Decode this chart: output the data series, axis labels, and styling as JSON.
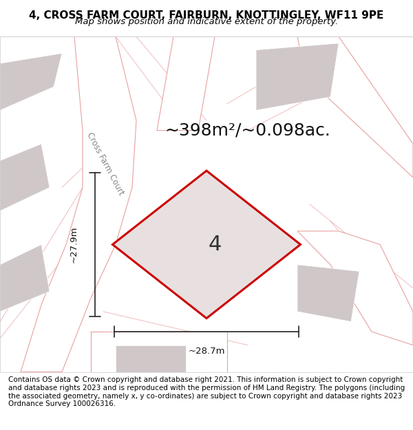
{
  "title_line1": "4, CROSS FARM COURT, FAIRBURN, KNOTTINGLEY, WF11 9PE",
  "title_line2": "Map shows position and indicative extent of the property.",
  "area_label": "~398m²/~0.098ac.",
  "plot_number": "4",
  "dim_width": "~28.7m",
  "dim_height": "~27.9m",
  "road_label": "Cross Farm Court",
  "footer_text": "Contains OS data © Crown copyright and database right 2021. This information is subject to Crown copyright and database rights 2023 and is reproduced with the permission of HM Land Registry. The polygons (including the associated geometry, namely x, y co-ordinates) are subject to Crown copyright and database rights 2023 Ordnance Survey 100026316.",
  "bg_color": "#f5f0f0",
  "map_bg": "#f0eded",
  "plot_fill": "#e8e0e0",
  "plot_edge": "#cc0000",
  "road_fill": "#ffffff",
  "building_fill": "#d0c8c8",
  "road_line_color": "#e8a0a0",
  "dim_line_color": "#222222",
  "title_fontsize": 11,
  "subtitle_fontsize": 9.5,
  "area_fontsize": 18,
  "plot_number_fontsize": 22,
  "footer_fontsize": 7.5
}
